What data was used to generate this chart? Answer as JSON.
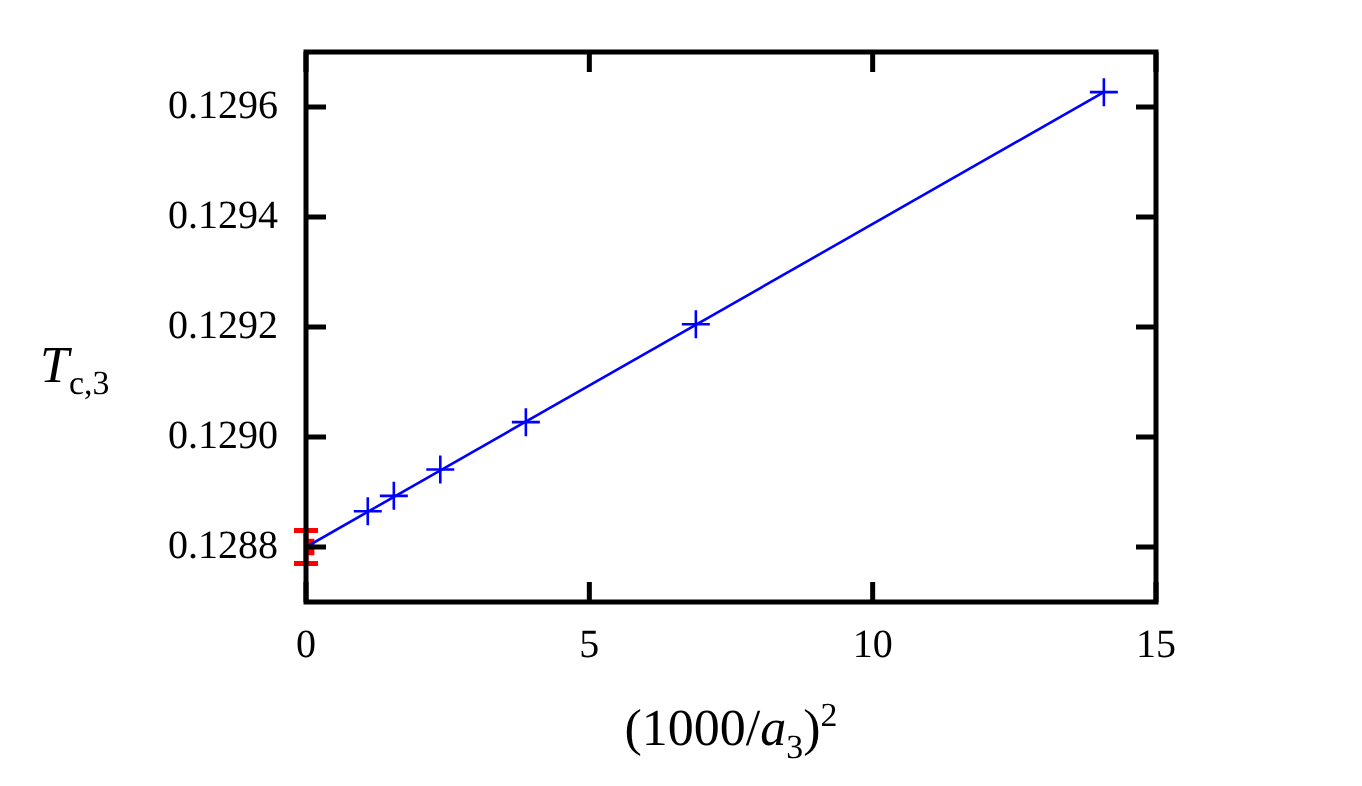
{
  "chart_data": {
    "type": "scatter",
    "xlabel": "(1000/a$_{3}$)$^{2}$",
    "ylabel": "T$_{c,3}$",
    "xlim": [
      0,
      15
    ],
    "xticks": [
      0,
      5,
      10,
      15
    ],
    "ylim": [
      0.1287,
      0.1297
    ],
    "yticks": [
      0.1288,
      {
        "value": 0.129,
        "label": "0.1290"
      },
      0.1292,
      0.1294,
      0.1296
    ],
    "grid": false,
    "legend": false,
    "series": [
      {
        "type": "line",
        "color": "#0000ff",
        "x": [
          0,
          14.08
        ],
        "values": [
          0.1288,
          0.129627
        ],
        "line_style": "solid"
      },
      {
        "type": "scatter",
        "color": "#0000ff",
        "x": [
          1.09,
          1.55,
          2.37,
          3.88,
          6.88,
          14.08
        ],
        "values": [
          0.128865,
          0.128893,
          0.128941,
          0.129027,
          0.129205,
          0.129627
        ],
        "marker": "cross"
      },
      {
        "type": "scatter",
        "color": "#ff0000",
        "x": [
          0
        ],
        "values": [
          0.1288
        ],
        "errors": [
          3e-05
        ],
        "marker": "square"
      }
    ]
  }
}
